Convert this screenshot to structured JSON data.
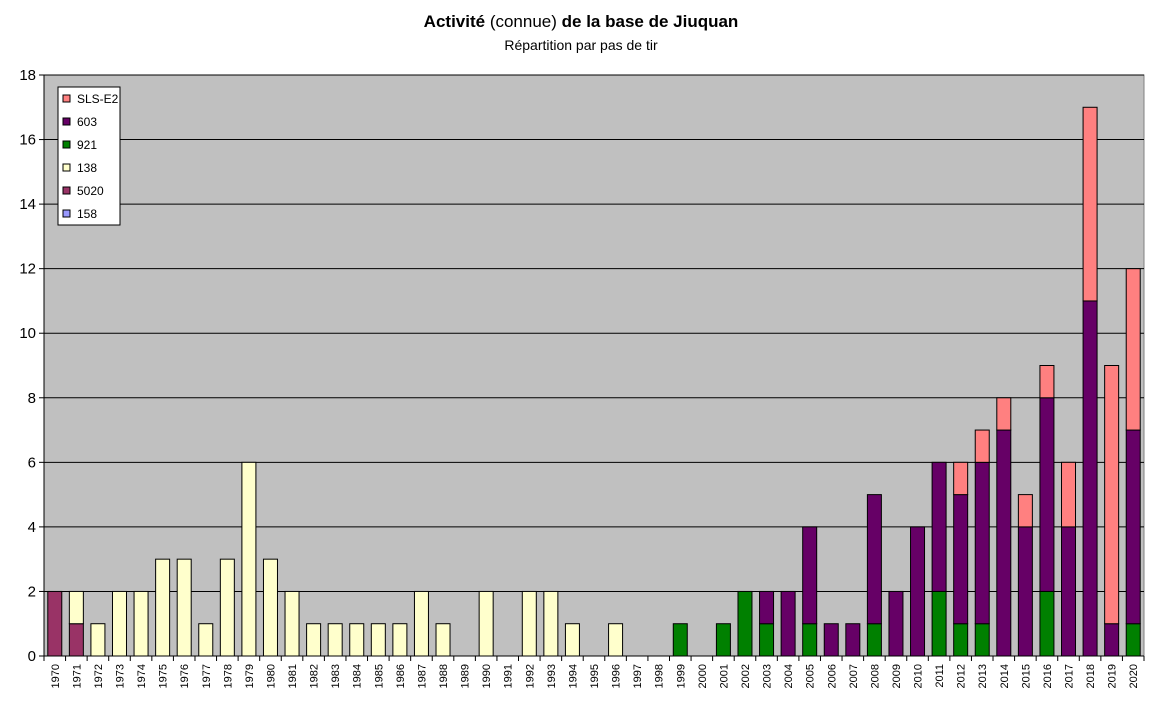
{
  "title": {
    "part1": "Activité",
    "part2": " (connue) ",
    "part3": "de la base de Jiuquan"
  },
  "subtitle": "Répartition par pas de tir",
  "chart_data": {
    "type": "bar",
    "stacked": true,
    "ylim": [
      0,
      18
    ],
    "yticks": [
      0,
      2,
      4,
      6,
      8,
      10,
      12,
      14,
      16,
      18
    ],
    "grid": true,
    "legend_position": "top-left",
    "background_color": "#c0c0c0",
    "categories": [
      "1970",
      "1971",
      "1972",
      "1973",
      "1974",
      "1975",
      "1976",
      "1977",
      "1978",
      "1979",
      "1980",
      "1981",
      "1982",
      "1983",
      "1984",
      "1985",
      "1986",
      "1987",
      "1988",
      "1989",
      "1990",
      "1991",
      "1992",
      "1993",
      "1994",
      "1995",
      "1996",
      "1997",
      "1998",
      "1999",
      "2000",
      "2001",
      "2002",
      "2003",
      "2004",
      "2005",
      "2006",
      "2007",
      "2008",
      "2009",
      "2010",
      "2011",
      "2012",
      "2013",
      "2014",
      "2015",
      "2016",
      "2017",
      "2018",
      "2019",
      "2020"
    ],
    "series": [
      {
        "name": "158",
        "color": "#9999ff",
        "values": [
          0,
          0,
          0,
          0,
          0,
          0,
          0,
          0,
          0,
          0,
          0,
          0,
          0,
          0,
          0,
          0,
          0,
          0,
          0,
          0,
          0,
          0,
          0,
          0,
          0,
          0,
          0,
          0,
          0,
          0,
          0,
          0,
          0,
          0,
          0,
          0,
          0,
          0,
          0,
          0,
          0,
          0,
          0,
          0,
          0,
          0,
          0,
          0,
          0,
          0,
          0
        ]
      },
      {
        "name": "5020",
        "color": "#993366",
        "values": [
          2,
          1,
          0,
          0,
          0,
          0,
          0,
          0,
          0,
          0,
          0,
          0,
          0,
          0,
          0,
          0,
          0,
          0,
          0,
          0,
          0,
          0,
          0,
          0,
          0,
          0,
          0,
          0,
          0,
          0,
          0,
          0,
          0,
          0,
          0,
          0,
          0,
          0,
          0,
          0,
          0,
          0,
          0,
          0,
          0,
          0,
          0,
          0,
          0,
          0,
          0
        ]
      },
      {
        "name": "138",
        "color": "#ffffcc",
        "values": [
          0,
          1,
          1,
          2,
          2,
          3,
          3,
          1,
          3,
          6,
          3,
          2,
          1,
          1,
          1,
          1,
          1,
          2,
          1,
          0,
          2,
          0,
          2,
          2,
          1,
          0,
          1,
          0,
          0,
          0,
          0,
          0,
          0,
          0,
          0,
          0,
          0,
          0,
          0,
          0,
          0,
          0,
          0,
          0,
          0,
          0,
          0,
          0,
          0,
          0,
          0
        ]
      },
      {
        "name": "921",
        "color": "#008000",
        "values": [
          0,
          0,
          0,
          0,
          0,
          0,
          0,
          0,
          0,
          0,
          0,
          0,
          0,
          0,
          0,
          0,
          0,
          0,
          0,
          0,
          0,
          0,
          0,
          0,
          0,
          0,
          0,
          0,
          0,
          1,
          0,
          1,
          2,
          1,
          0,
          1,
          0,
          0,
          1,
          0,
          0,
          2,
          1,
          1,
          0,
          0,
          2,
          0,
          0,
          0,
          1
        ]
      },
      {
        "name": "603",
        "color": "#660066",
        "values": [
          0,
          0,
          0,
          0,
          0,
          0,
          0,
          0,
          0,
          0,
          0,
          0,
          0,
          0,
          0,
          0,
          0,
          0,
          0,
          0,
          0,
          0,
          0,
          0,
          0,
          0,
          0,
          0,
          0,
          0,
          0,
          0,
          0,
          1,
          2,
          3,
          1,
          1,
          4,
          2,
          4,
          4,
          4,
          5,
          7,
          4,
          6,
          4,
          11,
          1,
          6
        ]
      },
      {
        "name": "SLS-E2",
        "color": "#ff8080",
        "values": [
          0,
          0,
          0,
          0,
          0,
          0,
          0,
          0,
          0,
          0,
          0,
          0,
          0,
          0,
          0,
          0,
          0,
          0,
          0,
          0,
          0,
          0,
          0,
          0,
          0,
          0,
          0,
          0,
          0,
          0,
          0,
          0,
          0,
          0,
          0,
          0,
          0,
          0,
          0,
          0,
          0,
          0,
          1,
          1,
          1,
          1,
          1,
          2,
          6,
          8,
          5
        ]
      }
    ],
    "legend_order": [
      "SLS-E2",
      "603",
      "921",
      "138",
      "5020",
      "158"
    ]
  }
}
